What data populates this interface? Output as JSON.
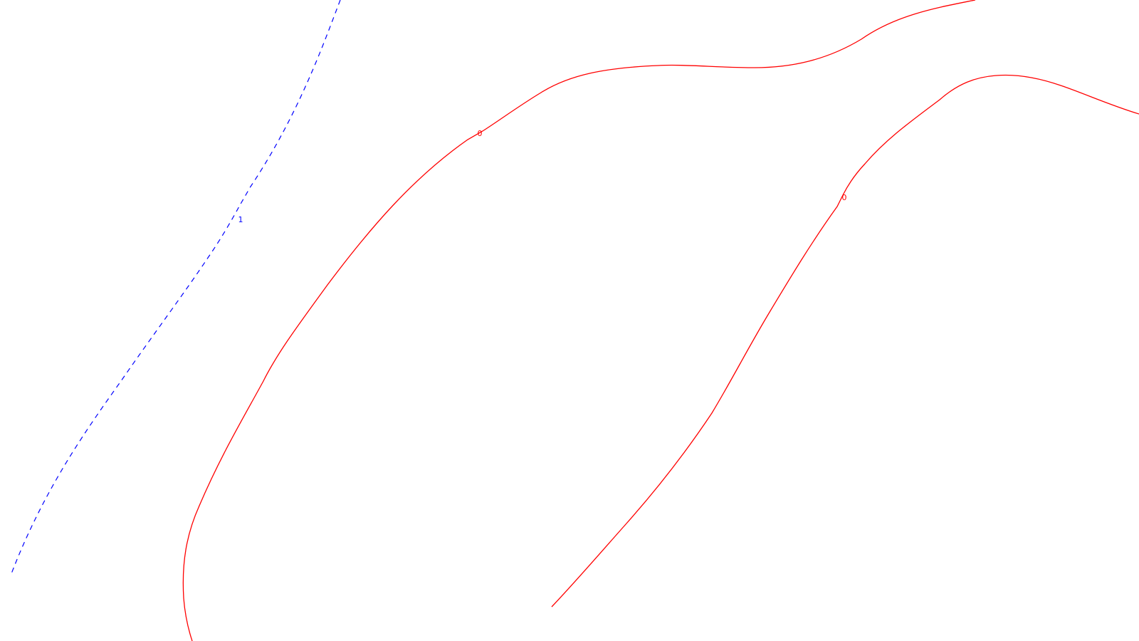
{
  "colors": {
    "background": "#ffffff",
    "contour_zero": "#ff0000",
    "contour_one": "#0000ff"
  },
  "contours": {
    "zero_left": {
      "level": "0",
      "style": "solid"
    },
    "zero_right": {
      "level": "0",
      "style": "solid"
    },
    "one": {
      "level": "1",
      "style": "dashed"
    }
  }
}
